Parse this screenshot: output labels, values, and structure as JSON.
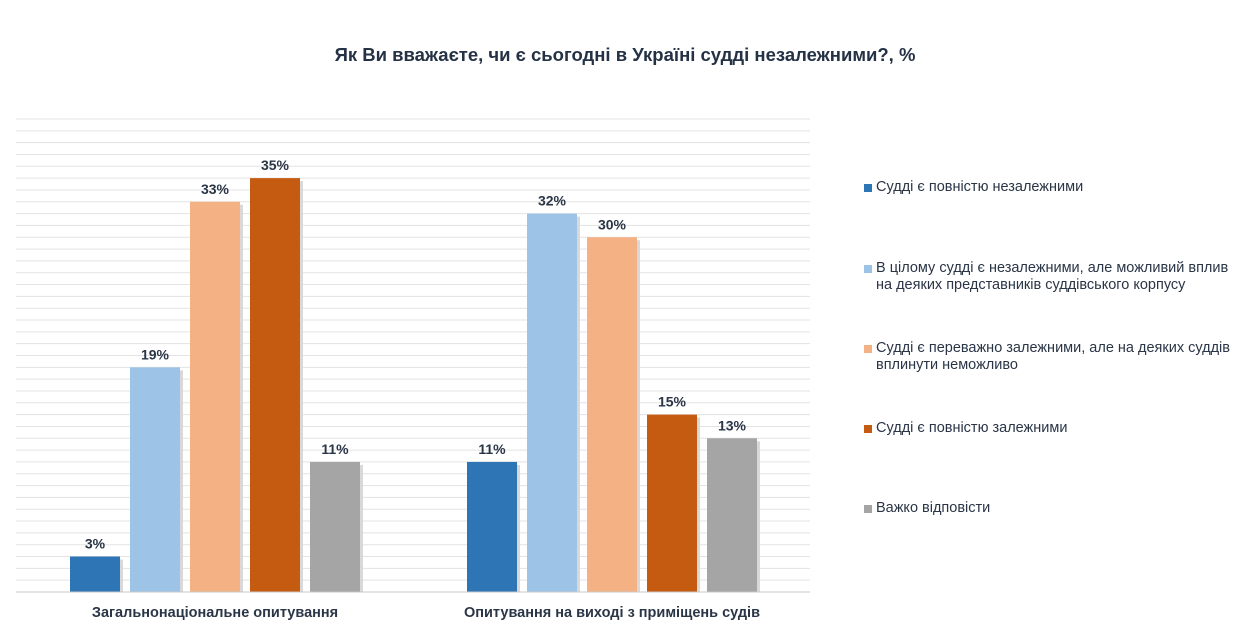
{
  "chart_data": {
    "type": "bar",
    "title": "Як Ви вважаєте, чи є сьогодні в Україні судді незалежними?, %",
    "categories": [
      "Загальнонаціональне опитування",
      "Опитування на виході з приміщень судів"
    ],
    "series": [
      {
        "name": "Судді є повністю незалежними",
        "color": "#2e75b6",
        "values": [
          3,
          11
        ]
      },
      {
        "name": "В цілому судді  є незалежними, але можливий вплив на деяких представників суддівського корпусу",
        "color": "#9dc3e6",
        "values": [
          19,
          32
        ]
      },
      {
        "name": "Судді є переважно залежними, але на деяких суддів вплинути неможливо",
        "color": "#f4b183",
        "values": [
          33,
          30
        ]
      },
      {
        "name": "Судді є повністю залежними",
        "color": "#c55a11",
        "values": [
          35,
          15
        ]
      },
      {
        "name": "Важко відповісти",
        "color": "#a5a5a5",
        "values": [
          11,
          13
        ]
      }
    ],
    "value_suffix": "%",
    "ylim": [
      0,
      40
    ],
    "grid": true,
    "legend_position": "right"
  }
}
